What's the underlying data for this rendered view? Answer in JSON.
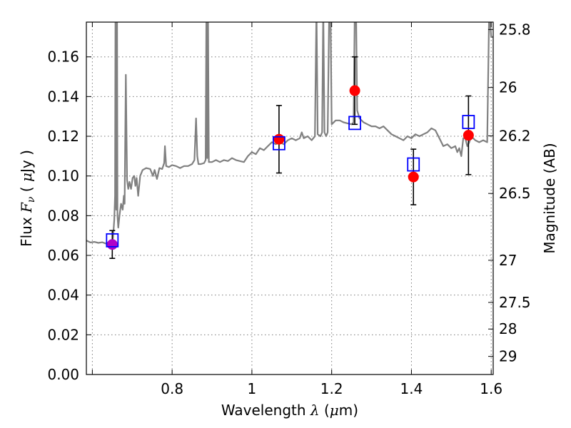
{
  "chart_data": {
    "type": "scatter",
    "xlabel": "Wavelength",
    "xlabel_symbol": "λ",
    "xlabel_unit_pre": " (",
    "xlabel_unit_mu": "μ",
    "xlabel_unit_post": "m)",
    "ylabel": "Flux",
    "ylabel_symbol": "F",
    "ylabel_subscript": "ν",
    "ylabel_unit_pre": "( ",
    "ylabel_unit_mu": "μ",
    "ylabel_unit_post": "Jy )",
    "y2label": "Magnitude (AB)",
    "xlim": [
      0.585,
      1.605
    ],
    "ylim": [
      0.0,
      0.1775
    ],
    "grid": true,
    "x_ticks": [
      {
        "value": 0.6,
        "label": ""
      },
      {
        "value": 0.8,
        "label": "0.8"
      },
      {
        "value": 1.0,
        "label": "1"
      },
      {
        "value": 1.2,
        "label": "1.2"
      },
      {
        "value": 1.4,
        "label": "1.4"
      },
      {
        "value": 1.6,
        "label": "1.6"
      }
    ],
    "y_ticks": [
      {
        "value": 0.0,
        "label": "0.00"
      },
      {
        "value": 0.02,
        "label": "0.02"
      },
      {
        "value": 0.04,
        "label": "0.04"
      },
      {
        "value": 0.06,
        "label": "0.06"
      },
      {
        "value": 0.08,
        "label": "0.08"
      },
      {
        "value": 0.1,
        "label": "0.10"
      },
      {
        "value": 0.12,
        "label": "0.12"
      },
      {
        "value": 0.14,
        "label": "0.14"
      },
      {
        "value": 0.16,
        "label": "0.16"
      }
    ],
    "magnitude_ticks": [
      {
        "value": 25.8,
        "label": "25.8"
      },
      {
        "value": 26.0,
        "label": "26"
      },
      {
        "value": 26.2,
        "label": "26.2"
      },
      {
        "value": 26.5,
        "label": "26.5"
      },
      {
        "value": 27.0,
        "label": "27"
      },
      {
        "value": 27.5,
        "label": "27.5"
      },
      {
        "value": 28.0,
        "label": "28"
      },
      {
        "value": 29.0,
        "label": "29"
      }
    ],
    "model_spectrum": {
      "color": "#808080",
      "points": [
        [
          0.585,
          0.0675
        ],
        [
          0.595,
          0.0665
        ],
        [
          0.605,
          0.0668
        ],
        [
          0.615,
          0.0663
        ],
        [
          0.625,
          0.0666
        ],
        [
          0.633,
          0.066
        ],
        [
          0.64,
          0.0665
        ],
        [
          0.645,
          0.066
        ],
        [
          0.65,
          0.0668
        ],
        [
          0.652,
          0.069
        ],
        [
          0.655,
          0.078
        ],
        [
          0.657,
          0.09
        ],
        [
          0.658,
          0.185
        ],
        [
          0.659,
          0.095
        ],
        [
          0.66,
          0.083
        ],
        [
          0.662,
          0.185
        ],
        [
          0.663,
          0.08
        ],
        [
          0.665,
          0.074
        ],
        [
          0.668,
          0.08
        ],
        [
          0.672,
          0.086
        ],
        [
          0.676,
          0.083
        ],
        [
          0.679,
          0.09
        ],
        [
          0.681,
          0.086
        ],
        [
          0.684,
          0.151
        ],
        [
          0.687,
          0.098
        ],
        [
          0.69,
          0.0935
        ],
        [
          0.693,
          0.097
        ],
        [
          0.697,
          0.0935
        ],
        [
          0.701,
          0.099
        ],
        [
          0.705,
          0.1
        ],
        [
          0.708,
          0.095
        ],
        [
          0.711,
          0.099
        ],
        [
          0.715,
          0.09
        ],
        [
          0.72,
          0.1
        ],
        [
          0.726,
          0.103
        ],
        [
          0.735,
          0.104
        ],
        [
          0.745,
          0.1035
        ],
        [
          0.752,
          0.1
        ],
        [
          0.756,
          0.103
        ],
        [
          0.762,
          0.0985
        ],
        [
          0.768,
          0.104
        ],
        [
          0.775,
          0.1035
        ],
        [
          0.78,
          0.1065
        ],
        [
          0.782,
          0.115
        ],
        [
          0.785,
          0.105
        ],
        [
          0.792,
          0.1045
        ],
        [
          0.8,
          0.1055
        ],
        [
          0.81,
          0.105
        ],
        [
          0.82,
          0.104
        ],
        [
          0.83,
          0.105
        ],
        [
          0.84,
          0.105
        ],
        [
          0.85,
          0.106
        ],
        [
          0.856,
          0.108
        ],
        [
          0.86,
          0.129
        ],
        [
          0.863,
          0.11
        ],
        [
          0.866,
          0.106
        ],
        [
          0.872,
          0.106
        ],
        [
          0.88,
          0.1065
        ],
        [
          0.884,
          0.108
        ],
        [
          0.886,
          0.185
        ],
        [
          0.888,
          0.109
        ],
        [
          0.89,
          0.185
        ],
        [
          0.892,
          0.107
        ],
        [
          0.9,
          0.107
        ],
        [
          0.91,
          0.108
        ],
        [
          0.92,
          0.107
        ],
        [
          0.93,
          0.108
        ],
        [
          0.94,
          0.1075
        ],
        [
          0.95,
          0.109
        ],
        [
          0.96,
          0.108
        ],
        [
          0.97,
          0.1075
        ],
        [
          0.98,
          0.107
        ],
        [
          0.99,
          0.11
        ],
        [
          1.0,
          0.112
        ],
        [
          1.01,
          0.111
        ],
        [
          1.02,
          0.114
        ],
        [
          1.03,
          0.113
        ],
        [
          1.04,
          0.115
        ],
        [
          1.05,
          0.117
        ],
        [
          1.06,
          0.116
        ],
        [
          1.07,
          0.117
        ],
        [
          1.08,
          0.116
        ],
        [
          1.09,
          0.118
        ],
        [
          1.1,
          0.119
        ],
        [
          1.11,
          0.118
        ],
        [
          1.12,
          0.119
        ],
        [
          1.125,
          0.122
        ],
        [
          1.13,
          0.119
        ],
        [
          1.14,
          0.12
        ],
        [
          1.15,
          0.118
        ],
        [
          1.158,
          0.12
        ],
        [
          1.162,
          0.185
        ],
        [
          1.165,
          0.121
        ],
        [
          1.172,
          0.12
        ],
        [
          1.176,
          0.122
        ],
        [
          1.179,
          0.185
        ],
        [
          1.182,
          0.122
        ],
        [
          1.186,
          0.12
        ],
        [
          1.19,
          0.122
        ],
        [
          1.194,
          0.185
        ],
        [
          1.197,
          0.185
        ],
        [
          1.2,
          0.126
        ],
        [
          1.21,
          0.128
        ],
        [
          1.22,
          0.128
        ],
        [
          1.23,
          0.127
        ],
        [
          1.24,
          0.1265
        ],
        [
          1.25,
          0.126
        ],
        [
          1.255,
          0.127
        ],
        [
          1.258,
          0.185
        ],
        [
          1.261,
          0.185
        ],
        [
          1.264,
          0.133
        ],
        [
          1.27,
          0.129
        ],
        [
          1.28,
          0.127
        ],
        [
          1.29,
          0.126
        ],
        [
          1.3,
          0.125
        ],
        [
          1.31,
          0.125
        ],
        [
          1.32,
          0.124
        ],
        [
          1.33,
          0.125
        ],
        [
          1.34,
          0.123
        ],
        [
          1.35,
          0.121
        ],
        [
          1.36,
          0.12
        ],
        [
          1.37,
          0.119
        ],
        [
          1.38,
          0.118
        ],
        [
          1.39,
          0.12
        ],
        [
          1.4,
          0.119
        ],
        [
          1.41,
          0.121
        ],
        [
          1.42,
          0.12
        ],
        [
          1.43,
          0.121
        ],
        [
          1.44,
          0.122
        ],
        [
          1.45,
          0.124
        ],
        [
          1.46,
          0.123
        ],
        [
          1.47,
          0.119
        ],
        [
          1.48,
          0.115
        ],
        [
          1.49,
          0.116
        ],
        [
          1.5,
          0.114
        ],
        [
          1.51,
          0.115
        ],
        [
          1.515,
          0.112
        ],
        [
          1.52,
          0.114
        ],
        [
          1.525,
          0.11
        ],
        [
          1.53,
          0.119
        ],
        [
          1.535,
          0.119
        ],
        [
          1.54,
          0.115
        ],
        [
          1.545,
          0.117
        ],
        [
          1.55,
          0.12
        ],
        [
          1.56,
          0.118
        ],
        [
          1.57,
          0.117
        ],
        [
          1.58,
          0.118
        ],
        [
          1.59,
          0.117
        ],
        [
          1.595,
          0.185
        ],
        [
          1.6,
          0.17
        ],
        [
          1.605,
          0.17
        ]
      ]
    },
    "model_photometry": {
      "marker": "open-square",
      "color": "#0000ff",
      "points": [
        [
          0.65,
          0.0676
        ],
        [
          1.068,
          0.1165
        ],
        [
          1.258,
          0.1267
        ],
        [
          1.405,
          0.1058
        ],
        [
          1.543,
          0.1272
        ]
      ]
    },
    "observed_photometry": {
      "marker": "filled-circle",
      "color": "#ff0000",
      "first_point_color": "#b000c8",
      "errorbar_color": "#000000",
      "points": [
        {
          "x": 0.65,
          "y": 0.0655,
          "yerr": 0.007
        },
        {
          "x": 1.068,
          "y": 0.1185,
          "yerr": 0.017
        },
        {
          "x": 1.258,
          "y": 0.143,
          "yerr": 0.017
        },
        {
          "x": 1.405,
          "y": 0.0995,
          "yerr": 0.014
        },
        {
          "x": 1.543,
          "y": 0.1205,
          "yerr": 0.0198
        }
      ]
    }
  }
}
